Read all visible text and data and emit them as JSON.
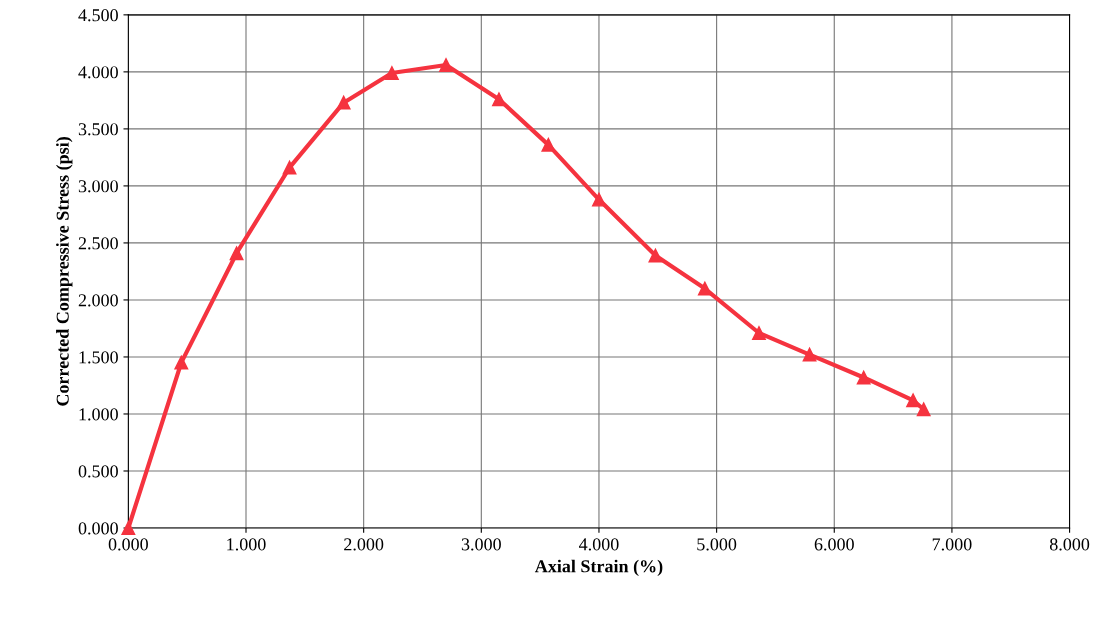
{
  "chart_data": {
    "type": "line",
    "xlabel": "Axial Strain (%)",
    "ylabel": "Corrected Compressive Stress (psi)",
    "series": [
      {
        "color": "#f5333f",
        "x": [
          0,
          0.45,
          0.92,
          1.37,
          1.83,
          2.24,
          2.7,
          3.15,
          3.57,
          4.0,
          4.48,
          4.9,
          5.36,
          5.79,
          6.25,
          6.67,
          6.76
        ],
        "values": [
          0,
          1.45,
          2.41,
          3.16,
          3.73,
          3.99,
          4.06,
          3.76,
          3.36,
          2.88,
          2.39,
          2.1,
          1.71,
          1.52,
          1.32,
          1.12,
          1.04
        ]
      }
    ],
    "xlim": [
      0,
      8
    ],
    "ylim": [
      0,
      4.5
    ],
    "xticks": [
      {
        "value": 0,
        "label": "0.000"
      },
      {
        "value": 1,
        "label": "1.000"
      },
      {
        "value": 2,
        "label": "2.000"
      },
      {
        "value": 3,
        "label": "3.000"
      },
      {
        "value": 4,
        "label": "4.000"
      },
      {
        "value": 5,
        "label": "5.000"
      },
      {
        "value": 6,
        "label": "6.000"
      },
      {
        "value": 7,
        "label": "7.000"
      },
      {
        "value": 8,
        "label": "8.000"
      }
    ],
    "yticks": [
      {
        "value": 0,
        "label": "0.000"
      },
      {
        "value": 0.5,
        "label": "0.500"
      },
      {
        "value": 1,
        "label": "1.000"
      },
      {
        "value": 1.5,
        "label": "1.500"
      },
      {
        "value": 2,
        "label": "2.000"
      },
      {
        "value": 2.5,
        "label": "2.500"
      },
      {
        "value": 3,
        "label": "3.000"
      },
      {
        "value": 3.5,
        "label": "3.500"
      },
      {
        "value": 4,
        "label": "4.000"
      },
      {
        "value": 4.5,
        "label": "4.500"
      }
    ],
    "grid": true,
    "marker": "triangle",
    "line_style": "solid",
    "legend": false
  }
}
